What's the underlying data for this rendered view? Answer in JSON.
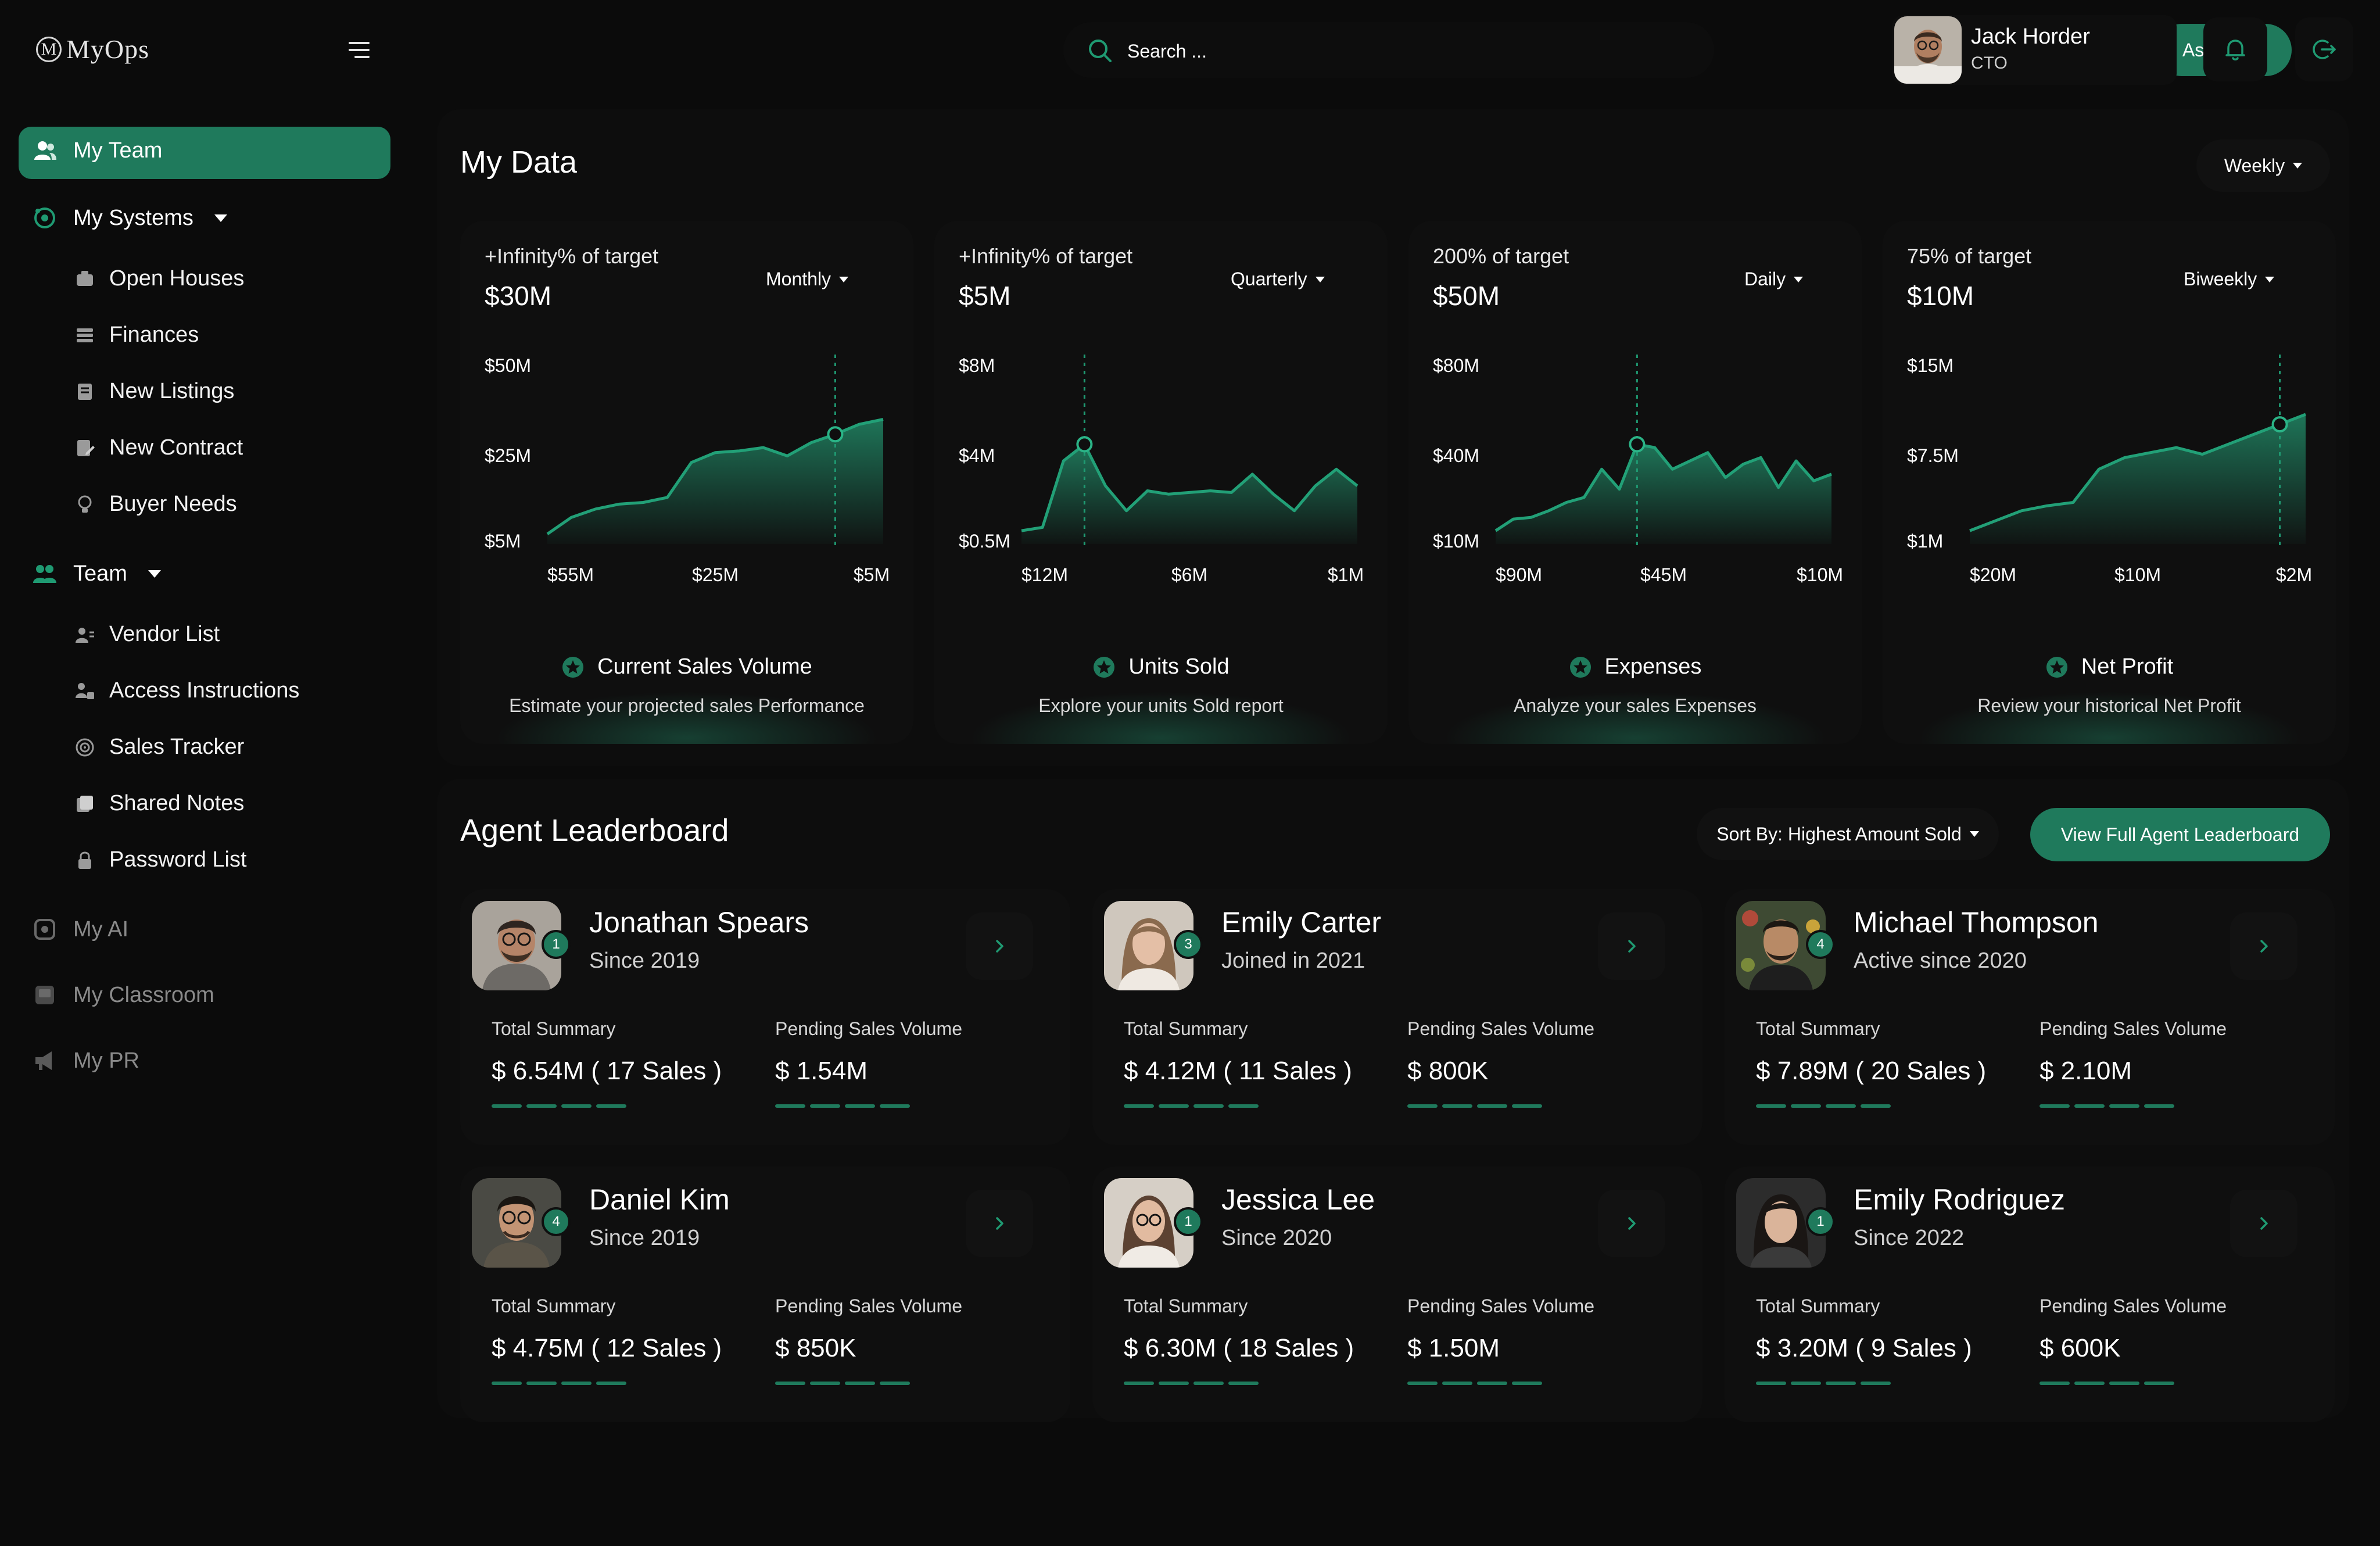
{
  "brand": {
    "logo_mark": "M",
    "name": "MyOps"
  },
  "search": {
    "placeholder": "Search ..."
  },
  "assistant_button": "Ask Maria",
  "user": {
    "name": "Jack Horder",
    "role": "CTO"
  },
  "colors": {
    "accent": "#1f7a5c",
    "background": "#0b0b0b",
    "panel": "#0d0d0d",
    "card": "#0f0f0f"
  },
  "sidebar": {
    "items": [
      {
        "label": "My Team",
        "icon": "team-icon",
        "active": true
      },
      {
        "label": "My Systems",
        "icon": "systems-icon",
        "expandable": true
      },
      {
        "label": "Open Houses",
        "icon": "house-icon"
      },
      {
        "label": "Finances",
        "icon": "finance-icon"
      },
      {
        "label": "New Listings",
        "icon": "listing-icon"
      },
      {
        "label": "New Contract",
        "icon": "contract-icon"
      },
      {
        "label": "Buyer Needs",
        "icon": "lightbulb-icon"
      },
      {
        "label": "Team",
        "icon": "team-group-icon",
        "expandable": true
      },
      {
        "label": "Vendor List",
        "icon": "vendor-icon"
      },
      {
        "label": "Access Instructions",
        "icon": "access-icon"
      },
      {
        "label": "Sales Tracker",
        "icon": "target-icon"
      },
      {
        "label": "Shared Notes",
        "icon": "notes-icon"
      },
      {
        "label": "Password List",
        "icon": "lock-icon"
      },
      {
        "label": "My AI",
        "icon": "ai-icon",
        "disabled": true
      },
      {
        "label": "My Classroom",
        "icon": "classroom-icon",
        "disabled": true
      },
      {
        "label": "My PR",
        "icon": "megaphone-icon",
        "disabled": true
      }
    ]
  },
  "my_data": {
    "title": "My Data",
    "period": "Weekly",
    "cards": [
      {
        "target": "+Infinity% of target",
        "value": "$30M",
        "period": "Monthly",
        "name": "Current Sales Volume",
        "desc": "Estimate your projected sales Performance"
      },
      {
        "target": "+Infinity% of target",
        "value": "$5M",
        "period": "Quarterly",
        "name": "Units Sold",
        "desc": "Explore your units Sold report"
      },
      {
        "target": "200% of target",
        "value": "$50M",
        "period": "Daily",
        "name": "Expenses",
        "desc": "Analyze your sales Expenses"
      },
      {
        "target": "75% of target",
        "value": "$10M",
        "period": "Biweekly",
        "name": "Net Profit",
        "desc": "Review your historical Net Profit"
      }
    ]
  },
  "chart_data": [
    {
      "type": "area",
      "y_ticks": [
        "$50M",
        "$25M",
        "$5M"
      ],
      "x_ticks": [
        "$55M",
        "$25M",
        "$5M"
      ],
      "values": [
        0.06,
        0.16,
        0.21,
        0.24,
        0.25,
        0.28,
        0.49,
        0.55,
        0.56,
        0.58,
        0.53,
        0.61,
        0.66,
        0.72,
        0.75
      ],
      "highlight_index": 12
    },
    {
      "type": "area",
      "y_ticks": [
        "$8M",
        "$4M",
        "$0.5M"
      ],
      "x_ticks": [
        "$12M",
        "$6M",
        "$1M"
      ],
      "values": [
        0.08,
        0.1,
        0.5,
        0.6,
        0.35,
        0.2,
        0.32,
        0.3,
        0.31,
        0.32,
        0.31,
        0.42,
        0.3,
        0.2,
        0.35,
        0.45,
        0.35
      ],
      "highlight_index": 3
    },
    {
      "type": "area",
      "y_ticks": [
        "$80M",
        "$40M",
        "$10M"
      ],
      "x_ticks": [
        "$90M",
        "$45M",
        "$10M"
      ],
      "values": [
        0.08,
        0.15,
        0.16,
        0.2,
        0.25,
        0.28,
        0.45,
        0.33,
        0.6,
        0.58,
        0.45,
        0.5,
        0.55,
        0.4,
        0.48,
        0.52,
        0.34,
        0.5,
        0.38,
        0.42
      ],
      "highlight_index": 8
    },
    {
      "type": "area",
      "y_ticks": [
        "$15M",
        "$7.5M",
        "$1M"
      ],
      "x_ticks": [
        "$20M",
        "$10M",
        "$2M"
      ],
      "values": [
        0.08,
        0.14,
        0.2,
        0.23,
        0.25,
        0.45,
        0.52,
        0.55,
        0.58,
        0.54,
        0.6,
        0.66,
        0.72,
        0.78
      ],
      "highlight_index": 12
    }
  ],
  "leaderboard": {
    "title": "Agent Leaderboard",
    "sort": "Sort By: Highest Amount Sold",
    "view_all": "View Full Agent Leaderboard",
    "total_label": "Total Summary",
    "pending_label": "Pending Sales Volume",
    "agents": [
      {
        "rank": "1",
        "name": "Jonathan Spears",
        "since": "Since 2019",
        "total": "$ 6.54M ( 17 Sales )",
        "pending": "$ 1.54M"
      },
      {
        "rank": "3",
        "name": "Emily Carter",
        "since": "Joined in 2021",
        "total": "$ 4.12M ( 11 Sales )",
        "pending": "$ 800K"
      },
      {
        "rank": "4",
        "name": "Michael Thompson",
        "since": "Active since 2020",
        "total": "$ 7.89M ( 20 Sales )",
        "pending": "$ 2.10M"
      },
      {
        "rank": "4",
        "name": "Daniel Kim",
        "since": "Since 2019",
        "total": "$ 4.75M ( 12 Sales )",
        "pending": "$ 850K"
      },
      {
        "rank": "1",
        "name": "Jessica Lee",
        "since": "Since 2020",
        "total": "$ 6.30M ( 18 Sales )",
        "pending": "$ 1.50M"
      },
      {
        "rank": "1",
        "name": "Emily Rodriguez",
        "since": "Since 2022",
        "total": "$ 3.20M ( 9 Sales )",
        "pending": "$ 600K"
      }
    ]
  }
}
